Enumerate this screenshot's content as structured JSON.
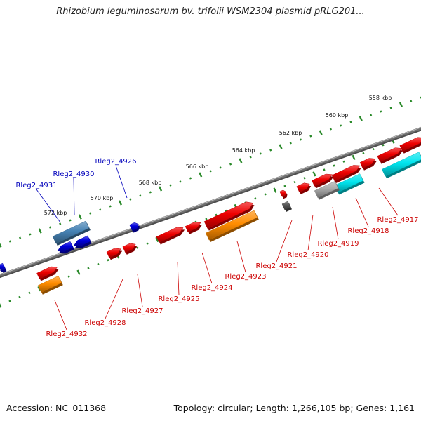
{
  "header": {
    "title": "Rhizobium leguminosarum bv. trifolii WSM2304 plasmid pRLG201..."
  },
  "footer": {
    "accession": "Accession: NC_011368",
    "summary": "Topology: circular; Length: 1,266,105 bp; Genes: 1,161"
  },
  "colors": {
    "forward_gene": "#ee0000",
    "reverse_gene": "#0000dd",
    "forward_label": "#cc0000",
    "reverse_label": "#0000bb",
    "rna_forward": "#ff8c00",
    "rna_reverse": "#4682b4",
    "pseudo": "#aaaaaa",
    "other": "#00e5ee",
    "small_dark": "#555555",
    "backbone": "#707070",
    "ruler": "#2a8a2a"
  },
  "ruler": {
    "ticks": [
      "558 kbp",
      "560 kbp",
      "562 kbp",
      "564 kbp",
      "566 kbp",
      "568 kbp",
      "570 kbp",
      "572 kbp"
    ]
  },
  "genes_forward": [
    "Rleg2_4917",
    "Rleg2_4918",
    "Rleg2_4919",
    "Rleg2_4920",
    "Rleg2_4921",
    "Rleg2_4923",
    "Rleg2_4924",
    "Rleg2_4925",
    "Rleg2_4927",
    "Rleg2_4928",
    "Rleg2_4932"
  ],
  "genes_reverse": [
    "Rleg2_4926",
    "Rleg2_4930",
    "Rleg2_4931"
  ]
}
